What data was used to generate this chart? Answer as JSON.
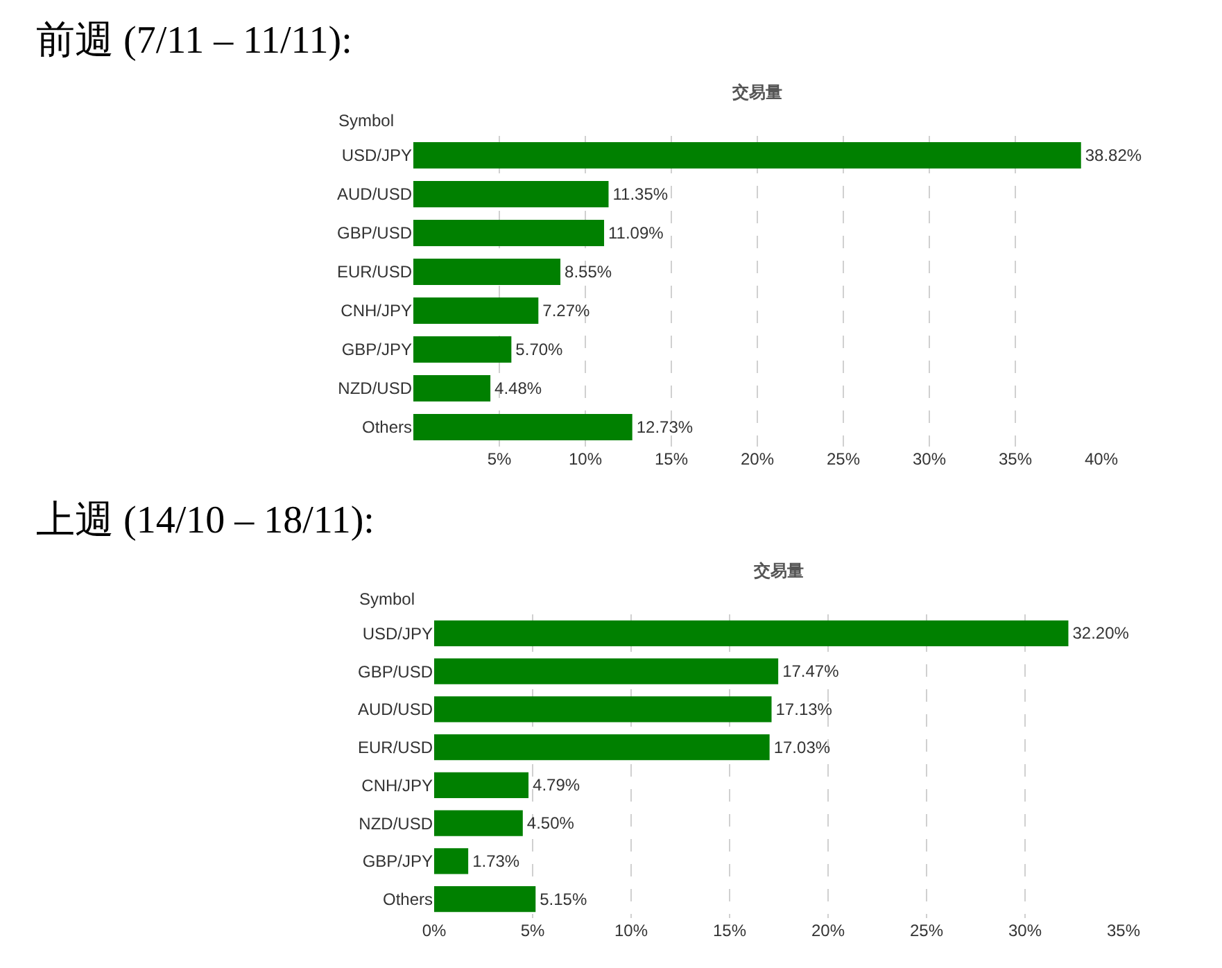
{
  "chart_data": [
    {
      "type": "bar",
      "orientation": "horizontal",
      "title": "前週 (7/11 – 11/11):",
      "subtitle": "交易量",
      "ylabel": "Symbol",
      "categories": [
        "USD/JPY",
        "AUD/USD",
        "GBP/USD",
        "EUR/USD",
        "CNH/JPY",
        "GBP/JPY",
        "NZD/USD",
        "Others"
      ],
      "values": [
        38.82,
        11.35,
        11.09,
        8.55,
        7.27,
        5.7,
        4.48,
        12.73
      ],
      "value_labels": [
        "38.82%",
        "11.35%",
        "11.09%",
        "8.55%",
        "7.27%",
        "5.70%",
        "4.48%",
        "12.73%"
      ],
      "color": "#008000",
      "xlim": [
        0,
        40
      ],
      "xticks": [
        {
          "value": 5,
          "label": "5%"
        },
        {
          "value": 10,
          "label": "10%"
        },
        {
          "value": 15,
          "label": "15%"
        },
        {
          "value": 20,
          "label": "20%"
        },
        {
          "value": 25,
          "label": "25%"
        },
        {
          "value": 30,
          "label": "30%"
        },
        {
          "value": 35,
          "label": "35%"
        },
        {
          "value": 40,
          "label": "40%"
        }
      ],
      "grid": "x",
      "legend": false
    },
    {
      "type": "bar",
      "orientation": "horizontal",
      "title": "上週 (14/10 – 18/11):",
      "subtitle": "交易量",
      "ylabel": "Symbol",
      "categories": [
        "USD/JPY",
        "GBP/USD",
        "AUD/USD",
        "EUR/USD",
        "CNH/JPY",
        "NZD/USD",
        "GBP/JPY",
        "Others"
      ],
      "values": [
        32.2,
        17.47,
        17.13,
        17.03,
        4.79,
        4.5,
        1.73,
        5.15
      ],
      "value_labels": [
        "32.20%",
        "17.47%",
        "17.13%",
        "17.03%",
        "4.79%",
        "4.50%",
        "1.73%",
        "5.15%"
      ],
      "color": "#008000",
      "xlim": [
        0,
        35
      ],
      "xticks": [
        {
          "value": 0,
          "label": "0%"
        },
        {
          "value": 5,
          "label": "5%"
        },
        {
          "value": 10,
          "label": "10%"
        },
        {
          "value": 15,
          "label": "15%"
        },
        {
          "value": 20,
          "label": "20%"
        },
        {
          "value": 25,
          "label": "25%"
        },
        {
          "value": 30,
          "label": "30%"
        },
        {
          "value": 35,
          "label": "35%"
        }
      ],
      "grid": "x",
      "legend": false
    }
  ]
}
